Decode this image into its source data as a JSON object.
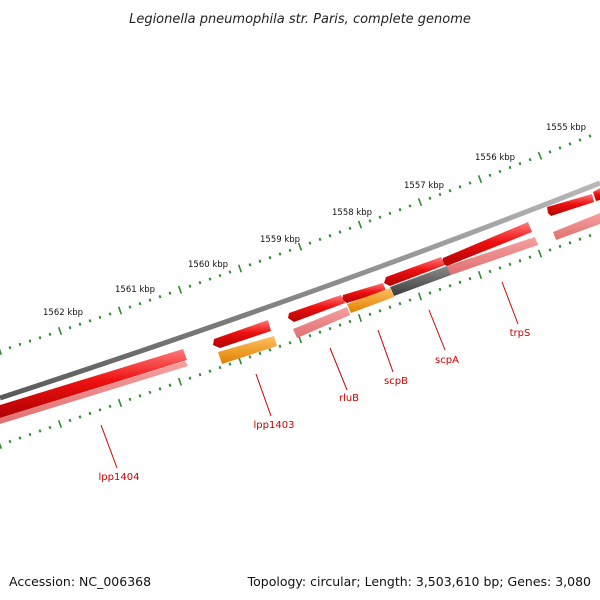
{
  "title": "Legionella pneumophila str. Paris, complete genome",
  "footer": {
    "accession": "Accession: NC_006368",
    "summary": "Topology: circular; Length: 3,503,610 bp; Genes: 3,080"
  },
  "colors": {
    "backbone": "#7a7a7a",
    "tick": "#2e8b2e",
    "gene_red": "#ee1111",
    "gene_pink": "#f08080",
    "gene_orange": "#ff9900",
    "gene_gray": "#555555",
    "label": "#cc0000",
    "leader": "#cc0000"
  },
  "scale_labels": [
    "1555 kbp",
    "1556 kbp",
    "1557 kbp",
    "1558 kbp",
    "1559 kbp",
    "1560 kbp",
    "1561 kbp",
    "1562 kbp"
  ],
  "gene_labels": [
    "trpS",
    "scpA",
    "scpB",
    "rluB",
    "lpp1403",
    "lpp1404"
  ]
}
